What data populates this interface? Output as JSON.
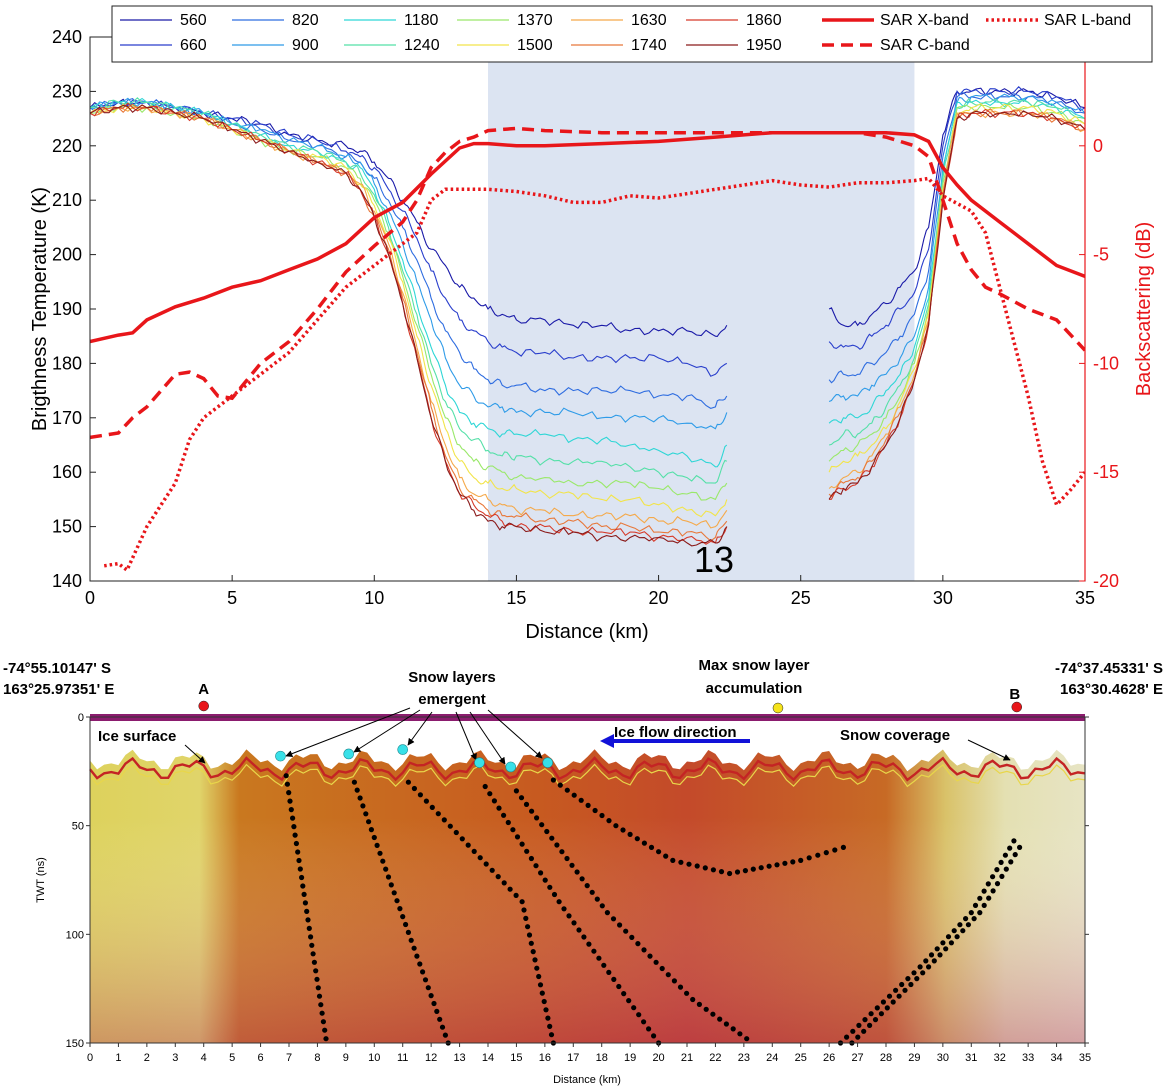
{
  "chart_data": [
    {
      "type": "line",
      "xlabel": "Distance (km)",
      "ylabel": "Brigthness Temperature (K)",
      "y2label": "Backscattering (dB)",
      "xlim": [
        0,
        35
      ],
      "ylim": [
        140,
        240
      ],
      "y2lim": [
        -20,
        5
      ],
      "xticks": [
        "0",
        "5",
        "10",
        "15",
        "20",
        "25",
        "30",
        "35"
      ],
      "yticks": [
        "140",
        "150",
        "160",
        "170",
        "180",
        "190",
        "200",
        "210",
        "220",
        "230",
        "240"
      ],
      "y2ticks": [
        "-20",
        "-15",
        "-10",
        "-5",
        "0"
      ],
      "highlight_span": [
        14,
        29
      ],
      "gap_km": [
        22.4,
        26
      ],
      "annotation": "13",
      "legend_position": "top",
      "tb_x": [
        0,
        1,
        2,
        3,
        4,
        5,
        6,
        7,
        8,
        9,
        9.5,
        10,
        10.5,
        11,
        11.5,
        12,
        12.5,
        13,
        13.5,
        14,
        14.5,
        15,
        16,
        17,
        18,
        19,
        20,
        21,
        22,
        22.4,
        26,
        26.5,
        27,
        27.5,
        28,
        28.5,
        29,
        29.5,
        30,
        30.5,
        31,
        32,
        33,
        34,
        35
      ],
      "tb_series": [
        {
          "name": "560",
          "color": "#1a1aa8",
          "values": [
            227,
            228,
            228,
            227,
            226,
            225,
            224,
            222,
            221,
            220,
            219,
            217,
            214,
            210,
            206,
            201,
            198,
            194,
            192,
            190,
            189,
            188,
            188,
            187,
            187,
            186,
            186,
            186,
            185,
            187,
            190,
            187,
            187,
            189,
            191,
            194,
            197,
            205,
            222,
            230,
            230,
            230,
            230,
            229,
            227
          ]
        },
        {
          "name": "660",
          "color": "#2a3fcc",
          "values": [
            227,
            228,
            228,
            227,
            226,
            225,
            224,
            222,
            221,
            219,
            218,
            216,
            212,
            208,
            203,
            197,
            192,
            188,
            186,
            184,
            183,
            182,
            182,
            181,
            181,
            181,
            181,
            180,
            178,
            180,
            184,
            183,
            183,
            185,
            187,
            190,
            193,
            201,
            220,
            230,
            230,
            230,
            230,
            229,
            227
          ]
        },
        {
          "name": "820",
          "color": "#2f6de0",
          "values": [
            227,
            228,
            228,
            227,
            226,
            224,
            223,
            221,
            220,
            218,
            217,
            214,
            210,
            205,
            199,
            192,
            186,
            182,
            179,
            177,
            176,
            176,
            175,
            175,
            175,
            175,
            174,
            174,
            172,
            174,
            177,
            178,
            178,
            180,
            182,
            185,
            189,
            197,
            218,
            229,
            229,
            229,
            229,
            228,
            226
          ]
        },
        {
          "name": "900",
          "color": "#2e9be8",
          "values": [
            227,
            228,
            228,
            227,
            226,
            224,
            223,
            221,
            220,
            218,
            217,
            213,
            208,
            202,
            195,
            188,
            181,
            176,
            174,
            172,
            172,
            171,
            171,
            171,
            170,
            170,
            170,
            169,
            168,
            171,
            173,
            174,
            174,
            176,
            178,
            181,
            185,
            194,
            216,
            228,
            229,
            229,
            229,
            228,
            226
          ]
        },
        {
          "name": "1180",
          "color": "#2ed6d6",
          "values": [
            227,
            228,
            228,
            227,
            226,
            224,
            222,
            220,
            219,
            217,
            216,
            212,
            206,
            199,
            191,
            183,
            176,
            171,
            169,
            168,
            167,
            167,
            167,
            166,
            166,
            165,
            164,
            163,
            161,
            165,
            169,
            170,
            170,
            172,
            175,
            178,
            183,
            192,
            215,
            228,
            228,
            228,
            228,
            227,
            225
          ]
        },
        {
          "name": "1240",
          "color": "#55e0a8",
          "values": [
            227,
            228,
            228,
            227,
            226,
            224,
            222,
            220,
            219,
            217,
            215,
            211,
            205,
            197,
            189,
            180,
            173,
            168,
            166,
            164,
            163,
            163,
            162,
            162,
            162,
            161,
            160,
            159,
            158,
            162,
            165,
            167,
            167,
            169,
            172,
            176,
            181,
            191,
            214,
            227,
            228,
            228,
            228,
            227,
            225
          ]
        },
        {
          "name": "1370",
          "color": "#9ae86a",
          "values": [
            226,
            227,
            227,
            226,
            225,
            223,
            221,
            219,
            218,
            216,
            214,
            210,
            204,
            196,
            187,
            178,
            170,
            165,
            162,
            161,
            160,
            159,
            159,
            158,
            158,
            158,
            157,
            156,
            155,
            158,
            162,
            164,
            165,
            167,
            170,
            174,
            180,
            190,
            213,
            227,
            227,
            227,
            227,
            226,
            224
          ]
        },
        {
          "name": "1500",
          "color": "#f2e44a",
          "values": [
            226,
            227,
            227,
            226,
            225,
            223,
            221,
            219,
            218,
            216,
            213,
            209,
            203,
            195,
            185,
            176,
            168,
            162,
            159,
            158,
            157,
            157,
            156,
            156,
            155,
            155,
            154,
            153,
            152,
            155,
            160,
            162,
            163,
            165,
            168,
            173,
            179,
            189,
            212,
            226,
            227,
            227,
            227,
            226,
            224
          ]
        },
        {
          "name": "1630",
          "color": "#f5a94a",
          "values": [
            226,
            227,
            227,
            226,
            225,
            223,
            221,
            219,
            217,
            215,
            213,
            208,
            202,
            193,
            183,
            173,
            165,
            159,
            156,
            155,
            154,
            153,
            153,
            152,
            152,
            152,
            151,
            151,
            150,
            153,
            157,
            159,
            160,
            163,
            167,
            172,
            178,
            188,
            211,
            226,
            226,
            226,
            226,
            225,
            223
          ]
        },
        {
          "name": "1740",
          "color": "#e8783a",
          "values": [
            226,
            227,
            227,
            226,
            225,
            223,
            221,
            219,
            217,
            215,
            212,
            207,
            201,
            192,
            182,
            172,
            163,
            157,
            155,
            153,
            152,
            152,
            151,
            151,
            150,
            150,
            149,
            149,
            148,
            151,
            156,
            158,
            159,
            162,
            166,
            171,
            177,
            188,
            211,
            225,
            226,
            226,
            226,
            225,
            223
          ]
        },
        {
          "name": "1860",
          "color": "#d63a2a",
          "values": [
            226,
            227,
            227,
            226,
            225,
            223,
            221,
            219,
            217,
            215,
            212,
            207,
            200,
            191,
            181,
            170,
            162,
            156,
            154,
            152,
            151,
            150,
            150,
            149,
            149,
            149,
            148,
            148,
            147,
            150,
            155,
            157,
            158,
            161,
            165,
            170,
            177,
            187,
            210,
            225,
            226,
            226,
            226,
            225,
            223
          ]
        },
        {
          "name": "1950",
          "color": "#8a1a1a",
          "values": [
            226,
            227,
            227,
            226,
            225,
            223,
            221,
            219,
            217,
            215,
            212,
            207,
            200,
            191,
            181,
            170,
            162,
            156,
            153,
            151,
            150,
            150,
            149,
            149,
            148,
            148,
            148,
            147,
            147,
            150,
            155,
            157,
            158,
            161,
            165,
            170,
            177,
            187,
            210,
            225,
            226,
            226,
            226,
            225,
            223
          ]
        }
      ],
      "sar_series": [
        {
          "name": "SAR X-band",
          "style": "solid",
          "color": "#e8161a",
          "x": [
            0,
            1,
            1.5,
            2,
            3,
            4,
            5,
            6,
            7,
            8,
            9,
            10,
            11,
            12,
            12.5,
            13,
            13.5,
            14,
            15,
            16,
            18,
            20,
            22,
            24,
            25,
            26,
            27,
            28,
            29,
            29.5,
            30,
            30.5,
            31,
            32,
            33,
            34,
            35
          ],
          "values": [
            -9.0,
            -8.7,
            -8.6,
            -8.0,
            -7.4,
            -7.0,
            -6.5,
            -6.2,
            -5.7,
            -5.2,
            -4.5,
            -3.3,
            -2.6,
            -1.3,
            -0.7,
            -0.1,
            0.1,
            0.1,
            0.0,
            0.0,
            0.1,
            0.2,
            0.4,
            0.6,
            0.6,
            0.6,
            0.6,
            0.6,
            0.5,
            0.2,
            -1.0,
            -1.8,
            -2.5,
            -3.5,
            -4.5,
            -5.5,
            -6.0
          ]
        },
        {
          "name": "SAR C-band",
          "style": "dashed",
          "color": "#e8161a",
          "x": [
            0,
            1,
            1.5,
            2,
            3,
            3.5,
            4,
            4.5,
            5,
            6,
            7,
            8,
            9,
            10,
            11,
            11.5,
            12,
            12.5,
            13,
            13.5,
            14,
            15,
            16,
            18,
            20,
            22,
            24,
            26,
            27,
            28,
            28.5,
            29,
            29.5,
            30,
            30.5,
            31,
            31.5,
            32,
            33,
            34,
            35
          ],
          "values": [
            -13.4,
            -13.2,
            -12.5,
            -12.0,
            -10.5,
            -10.4,
            -10.7,
            -11.5,
            -11.6,
            -10.0,
            -9.0,
            -7.5,
            -5.8,
            -4.6,
            -3.5,
            -2.5,
            -1.0,
            -0.3,
            0.2,
            0.4,
            0.7,
            0.8,
            0.7,
            0.6,
            0.6,
            0.6,
            0.6,
            0.6,
            0.6,
            0.4,
            0.2,
            0.0,
            -0.5,
            -2.5,
            -4.5,
            -5.7,
            -6.5,
            -6.8,
            -7.5,
            -8.0,
            -9.4
          ]
        },
        {
          "name": "SAR L-band",
          "style": "dotted",
          "color": "#e8161a",
          "x": [
            0.5,
            1,
            1.3,
            2,
            3,
            3.5,
            4,
            4.5,
            5,
            6,
            7,
            8,
            9,
            10,
            11,
            11.5,
            12,
            12.5,
            13,
            14,
            15,
            16,
            17,
            18,
            19,
            20,
            21,
            22,
            23,
            24,
            25,
            26,
            27,
            28,
            29,
            29.5,
            30,
            31,
            31.5,
            32,
            32.5,
            33,
            33.5,
            34,
            34.5,
            35
          ],
          "values": [
            -19.3,
            -19.2,
            -19.5,
            -17.5,
            -15.5,
            -13.5,
            -12.5,
            -12.0,
            -11.5,
            -10.5,
            -9.5,
            -8.0,
            -6.5,
            -5.5,
            -4.5,
            -4.0,
            -2.5,
            -2.0,
            -2.0,
            -2.0,
            -2.1,
            -2.3,
            -2.6,
            -2.6,
            -2.3,
            -2.4,
            -2.2,
            -2.0,
            -1.8,
            -1.6,
            -1.8,
            -1.9,
            -1.7,
            -1.7,
            -1.6,
            -1.5,
            -2.3,
            -3.0,
            -4.0,
            -6.5,
            -9.0,
            -11.5,
            -14.5,
            -16.5,
            -15.8,
            -15.0
          ]
        }
      ]
    },
    {
      "type": "heatmap",
      "xlabel": "Distance (km)",
      "ylabel": "TWT (ns)",
      "xlim": [
        0,
        35
      ],
      "ylim": [
        0,
        150
      ],
      "xticks": [
        "0",
        "1",
        "2",
        "3",
        "4",
        "5",
        "6",
        "7",
        "8",
        "9",
        "10",
        "11",
        "12",
        "13",
        "14",
        "15",
        "16",
        "17",
        "18",
        "19",
        "20",
        "21",
        "22",
        "23",
        "24",
        "25",
        "26",
        "27",
        "28",
        "29",
        "30",
        "31",
        "32",
        "33",
        "34",
        "35"
      ],
      "yticks": [
        "0",
        "50",
        "100",
        "150"
      ],
      "annotations": {
        "ice_surface": "Ice surface",
        "snow_layers_line1": "Snow layers",
        "snow_layers_line2": "emergent",
        "max_snow_line1": "Max snow layer",
        "max_snow_line2": "accumulation",
        "ice_flow": "Ice flow direction",
        "snow_coverage": "Snow coverage"
      },
      "coord_a_line1": "-74°55.10147' S",
      "coord_a_line2": "163°25.97351' E",
      "coord_b_line1": "-74°37.45331' S",
      "coord_b_line2": "163°30.4628' E",
      "point_a": {
        "label": "A",
        "x_km": 4.0
      },
      "point_b": {
        "label": "B",
        "x_km": 32.6
      },
      "max_snow_x_km": 24.2,
      "emergent_points_km": [
        6.7,
        9.1,
        11.0,
        13.7,
        14.8,
        16.1
      ],
      "colors": {
        "surface_band": "#8b1c6e",
        "marker_red": "#e8161a",
        "marker_yellow": "#f5e31b",
        "marker_cyan": "#38e0e8",
        "arrow_blue": "#1212d8"
      }
    }
  ]
}
